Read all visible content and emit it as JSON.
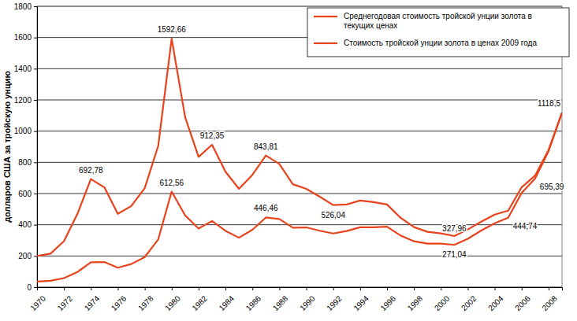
{
  "chart_data": {
    "type": "line",
    "y_label": "долларов США за тройскую унцию",
    "x": [
      1970,
      1971,
      1972,
      1973,
      1974,
      1975,
      1976,
      1977,
      1978,
      1979,
      1980,
      1981,
      1982,
      1983,
      1984,
      1985,
      1986,
      1987,
      1988,
      1989,
      1990,
      1991,
      1992,
      1993,
      1994,
      1995,
      1996,
      1997,
      1998,
      1999,
      2000,
      2001,
      2002,
      2003,
      2004,
      2005,
      2006,
      2007,
      2008,
      2009
    ],
    "xlim": [
      1970,
      2009
    ],
    "xticks": [
      1970,
      1972,
      1974,
      1976,
      1978,
      1980,
      1982,
      1984,
      1986,
      1988,
      1990,
      1992,
      1994,
      1996,
      1998,
      2000,
      2002,
      2004,
      2006,
      2008
    ],
    "ylim": [
      0,
      1800
    ],
    "yticks": [
      0,
      200,
      400,
      600,
      800,
      1000,
      1200,
      1400,
      1600,
      1800
    ],
    "grid": true,
    "legend": "upper right",
    "data_labels": true,
    "series": [
      {
        "name": "Среднегодовая стоимость тройской унции золота в текущих ценах",
        "color": "#e8431c",
        "values": [
          36,
          41,
          58,
          97,
          159,
          161,
          125,
          148,
          193,
          306,
          612.56,
          460,
          376,
          424,
          361,
          317,
          368,
          446.46,
          437,
          381,
          383,
          362,
          344,
          360,
          384,
          384,
          388,
          331,
          294,
          279,
          279,
          271.04,
          310,
          363,
          410,
          444.74,
          604,
          695.39,
          872,
          1118.5
        ],
        "value_labels": [
          null,
          null,
          null,
          null,
          null,
          null,
          null,
          null,
          null,
          null,
          "612,56",
          null,
          null,
          null,
          null,
          null,
          null,
          "446,46",
          null,
          null,
          null,
          null,
          null,
          null,
          null,
          null,
          null,
          null,
          null,
          null,
          null,
          "271,04",
          null,
          null,
          null,
          "444,74",
          null,
          "695,39",
          null,
          null
        ]
      },
      {
        "name": "Стоимость тройской унции золота в ценах 2009 года",
        "color": "#e8431c",
        "values": [
          200,
          215,
          295,
          470,
          692.78,
          640,
          470,
          520,
          635,
          905,
          1592.66,
          1090,
          835,
          912.35,
          740,
          630,
          720,
          843.81,
          790,
          660,
          630,
          580,
          526.04,
          530,
          555,
          545,
          530,
          445,
          385,
          355,
          345,
          327.96,
          370,
          420,
          465,
          490,
          640,
          715,
          880,
          1118.5
        ],
        "value_labels": [
          null,
          null,
          null,
          null,
          "692,78",
          null,
          null,
          null,
          null,
          null,
          "1592,66",
          null,
          null,
          "912,35",
          null,
          null,
          null,
          "843,81",
          null,
          null,
          null,
          null,
          "526,04",
          null,
          null,
          null,
          null,
          null,
          null,
          null,
          null,
          "327,96",
          null,
          null,
          null,
          null,
          null,
          null,
          null,
          "1118,5"
        ]
      }
    ]
  }
}
